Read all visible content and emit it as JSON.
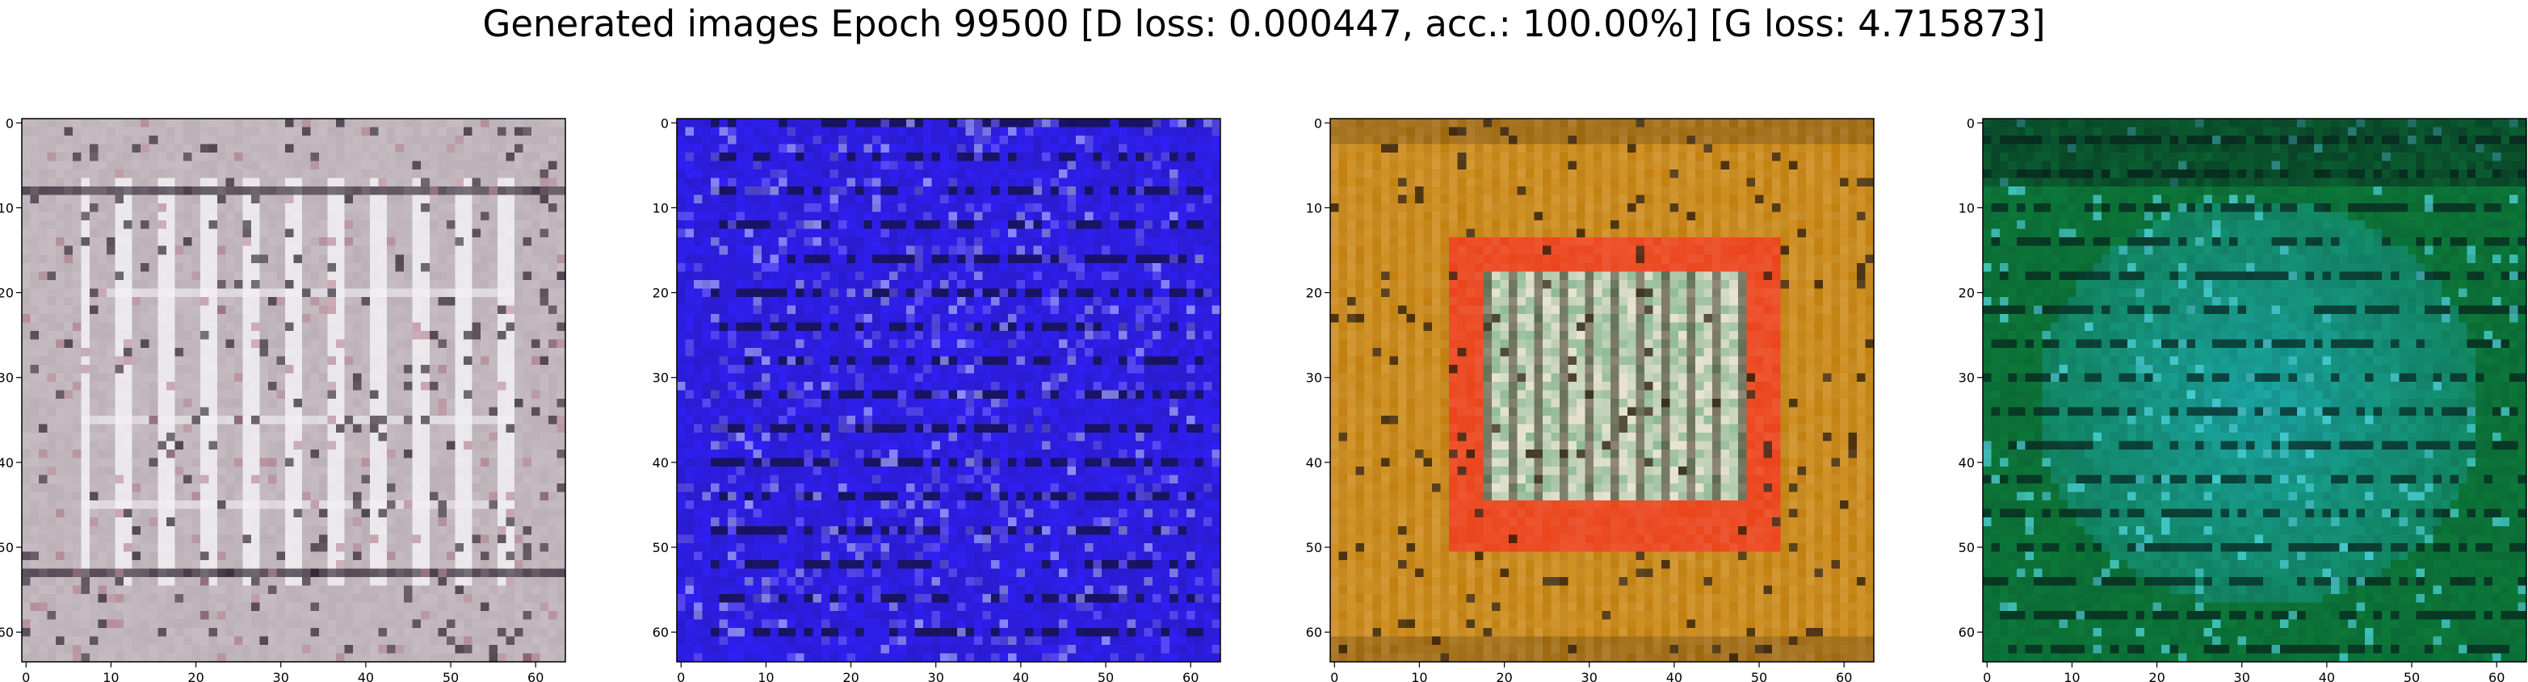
{
  "title": "Generated images Epoch 99500 [D loss: 0.000447, acc.: 100.00%] [G loss: 4.715873]",
  "grid_size": 64,
  "x_ticks": [
    "0",
    "10",
    "20",
    "30",
    "40",
    "50",
    "60"
  ],
  "y_ticks": [
    "0",
    "10",
    "20",
    "30",
    "40",
    "50",
    "60"
  ],
  "panels": [
    {
      "name": "panel-gray-grille",
      "description": "Greyish-white image with vertical white bars forming a grille",
      "base_color": "#bdb2b8",
      "stripe_color": "#f2f0f4",
      "dark_color": "#2a1f2c",
      "accent_color": "#b07a8a"
    },
    {
      "name": "panel-blue-noise",
      "description": "Saturated blue image with dark horizontal streaks",
      "base_color": "#2f1ff2",
      "stripe_color": "#6b5cff",
      "dark_color": "#12103a",
      "accent_color": "#9ea0ff"
    },
    {
      "name": "panel-orange-red-frame",
      "description": "Ochre/orange background with a red rectangular frame and a white-green center",
      "base_color": "#c2800f",
      "stripe_color": "#e0a23a",
      "dark_color": "#2a1a08",
      "accent_color": "#f23a1e",
      "center_color": "#e8e2cf"
    },
    {
      "name": "panel-green-teal",
      "description": "Dark green border with a cyan/teal center and dark horizontal streaks",
      "base_color": "#0c7a3a",
      "stripe_color": "#1fb6c0",
      "dark_color": "#07201c",
      "accent_color": "#58e6f2"
    }
  ]
}
